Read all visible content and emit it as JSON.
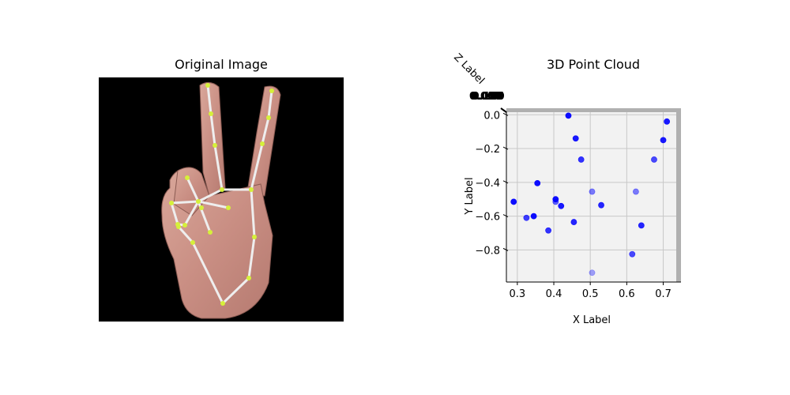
{
  "left_panel": {
    "title": "Original Image"
  },
  "chart_data": {
    "type": "scatter",
    "title": "3D Point Cloud",
    "projection": "3d",
    "xlabel": "X Label",
    "ylabel": "Y Label",
    "zlabel": "Z Label",
    "xlim": [
      0.27,
      0.74
    ],
    "ylim": [
      -0.99,
      0.02
    ],
    "xticks": [
      0.3,
      0.4,
      0.5,
      0.6,
      0.7
    ],
    "xtick_labels": [
      "0.3",
      "0.4",
      "0.5",
      "0.6",
      "0.7"
    ],
    "yticks": [
      0.0,
      -0.2,
      -0.4,
      -0.6,
      -0.8
    ],
    "ytick_labels": [
      "0.0",
      "−0.2",
      "−0.4",
      "−0.6",
      "−0.8"
    ],
    "ztick_labels": [
      "0.000",
      "0.025",
      "0.050",
      "0.075",
      "0.100",
      "0.125",
      "0.150"
    ],
    "grid": true,
    "point_color": "#0000ff",
    "x": [
      0.44,
      0.46,
      0.475,
      0.71,
      0.7,
      0.675,
      0.355,
      0.405,
      0.29,
      0.405,
      0.42,
      0.505,
      0.53,
      0.625,
      0.325,
      0.345,
      0.455,
      0.385,
      0.64,
      0.615,
      0.505
    ],
    "y": [
      -0.005,
      -0.14,
      -0.265,
      -0.04,
      -0.15,
      -0.265,
      -0.405,
      -0.5,
      -0.515,
      -0.515,
      -0.54,
      -0.455,
      -0.535,
      -0.455,
      -0.61,
      -0.6,
      -0.635,
      -0.685,
      -0.655,
      -0.825,
      -0.935
    ],
    "alpha": [
      0.95,
      0.9,
      0.8,
      0.9,
      0.9,
      0.7,
      0.95,
      0.95,
      0.95,
      0.6,
      0.9,
      0.5,
      0.85,
      0.5,
      0.75,
      0.95,
      0.85,
      0.8,
      0.85,
      0.7,
      0.35
    ]
  }
}
